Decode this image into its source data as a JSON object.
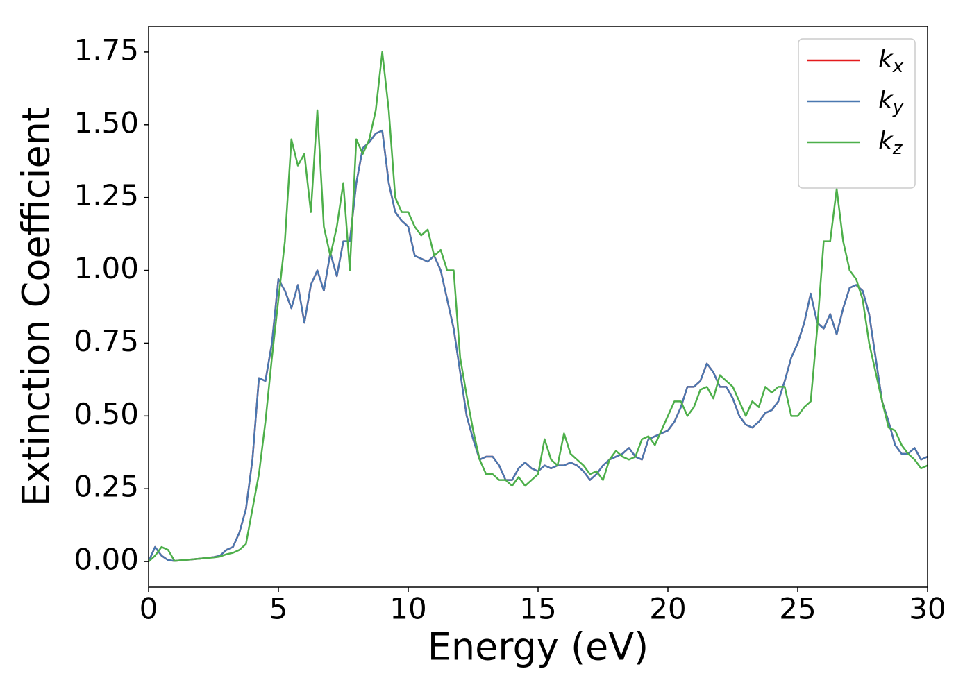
{
  "chart_data": {
    "type": "line",
    "xlabel": "Energy (eV)",
    "ylabel": "Extinction Coefficient",
    "x": [
      0,
      0.25,
      0.5,
      0.75,
      1,
      1.25,
      1.5,
      1.75,
      2,
      2.25,
      2.5,
      2.75,
      3,
      3.25,
      3.5,
      3.75,
      4,
      4.25,
      4.5,
      4.75,
      5,
      5.25,
      5.5,
      5.75,
      6,
      6.25,
      6.5,
      6.75,
      7,
      7.25,
      7.5,
      7.75,
      8,
      8.25,
      8.5,
      8.75,
      9,
      9.25,
      9.5,
      9.75,
      10,
      10.25,
      10.5,
      10.75,
      11,
      11.25,
      11.5,
      11.75,
      12,
      12.25,
      12.5,
      12.75,
      13,
      13.25,
      13.5,
      13.75,
      14,
      14.25,
      14.5,
      14.75,
      15,
      15.25,
      15.5,
      15.75,
      16,
      16.25,
      16.5,
      16.75,
      17,
      17.25,
      17.5,
      17.75,
      18,
      18.25,
      18.5,
      18.75,
      19,
      19.25,
      19.5,
      19.75,
      20,
      20.25,
      20.5,
      20.75,
      21,
      21.25,
      21.5,
      21.75,
      22,
      22.25,
      22.5,
      22.75,
      23,
      23.25,
      23.5,
      23.75,
      24,
      24.25,
      24.5,
      24.75,
      25,
      25.25,
      25.5,
      25.75,
      26,
      26.25,
      26.5,
      26.75,
      27,
      27.25,
      27.5,
      27.75,
      28,
      28.25,
      28.5,
      28.75,
      29,
      29.25,
      29.5,
      29.75,
      30
    ],
    "series": [
      {
        "name": "kx",
        "color": "#e41a1c",
        "values": [
          0,
          0.05,
          0.02,
          0.005,
          0.002,
          0.004,
          0.006,
          0.008,
          0.01,
          0.012,
          0.015,
          0.02,
          0.04,
          0.05,
          0.1,
          0.18,
          0.35,
          0.63,
          0.62,
          0.75,
          0.97,
          0.93,
          0.87,
          0.95,
          0.82,
          0.95,
          1.0,
          0.93,
          1.06,
          0.98,
          1.1,
          1.1,
          1.3,
          1.42,
          1.44,
          1.47,
          1.48,
          1.3,
          1.2,
          1.17,
          1.15,
          1.05,
          1.04,
          1.03,
          1.05,
          1.0,
          0.9,
          0.8,
          0.65,
          0.5,
          0.42,
          0.35,
          0.36,
          0.36,
          0.33,
          0.28,
          0.28,
          0.32,
          0.34,
          0.32,
          0.31,
          0.33,
          0.32,
          0.33,
          0.33,
          0.34,
          0.33,
          0.31,
          0.28,
          0.3,
          0.33,
          0.35,
          0.36,
          0.37,
          0.39,
          0.36,
          0.35,
          0.42,
          0.43,
          0.44,
          0.45,
          0.48,
          0.53,
          0.6,
          0.6,
          0.62,
          0.68,
          0.65,
          0.6,
          0.6,
          0.56,
          0.5,
          0.47,
          0.46,
          0.48,
          0.51,
          0.52,
          0.55,
          0.62,
          0.7,
          0.75,
          0.82,
          0.92,
          0.82,
          0.8,
          0.85,
          0.78,
          0.87,
          0.94,
          0.95,
          0.93,
          0.85,
          0.7,
          0.55,
          0.48,
          0.4,
          0.37,
          0.37,
          0.39,
          0.35,
          0.36
        ]
      },
      {
        "name": "ky",
        "color": "#4a78b0",
        "values": [
          0,
          0.05,
          0.02,
          0.005,
          0.002,
          0.004,
          0.006,
          0.008,
          0.01,
          0.012,
          0.015,
          0.02,
          0.04,
          0.05,
          0.1,
          0.18,
          0.35,
          0.63,
          0.62,
          0.75,
          0.97,
          0.93,
          0.87,
          0.95,
          0.82,
          0.95,
          1.0,
          0.93,
          1.06,
          0.98,
          1.1,
          1.1,
          1.3,
          1.42,
          1.44,
          1.47,
          1.48,
          1.3,
          1.2,
          1.17,
          1.15,
          1.05,
          1.04,
          1.03,
          1.05,
          1.0,
          0.9,
          0.8,
          0.65,
          0.5,
          0.42,
          0.35,
          0.36,
          0.36,
          0.33,
          0.28,
          0.28,
          0.32,
          0.34,
          0.32,
          0.31,
          0.33,
          0.32,
          0.33,
          0.33,
          0.34,
          0.33,
          0.31,
          0.28,
          0.3,
          0.33,
          0.35,
          0.36,
          0.37,
          0.39,
          0.36,
          0.35,
          0.42,
          0.43,
          0.44,
          0.45,
          0.48,
          0.53,
          0.6,
          0.6,
          0.62,
          0.68,
          0.65,
          0.6,
          0.6,
          0.56,
          0.5,
          0.47,
          0.46,
          0.48,
          0.51,
          0.52,
          0.55,
          0.62,
          0.7,
          0.75,
          0.82,
          0.92,
          0.82,
          0.8,
          0.85,
          0.78,
          0.87,
          0.94,
          0.95,
          0.93,
          0.85,
          0.7,
          0.55,
          0.48,
          0.4,
          0.37,
          0.37,
          0.39,
          0.35,
          0.36
        ]
      },
      {
        "name": "kz",
        "color": "#4daf4a",
        "values": [
          0,
          0.02,
          0.05,
          0.04,
          0.002,
          0.004,
          0.006,
          0.008,
          0.01,
          0.012,
          0.014,
          0.017,
          0.025,
          0.03,
          0.04,
          0.06,
          0.18,
          0.3,
          0.48,
          0.7,
          0.9,
          1.1,
          1.45,
          1.36,
          1.4,
          1.2,
          1.55,
          1.15,
          1.05,
          1.15,
          1.3,
          1.0,
          1.45,
          1.4,
          1.45,
          1.55,
          1.75,
          1.55,
          1.25,
          1.2,
          1.2,
          1.15,
          1.12,
          1.14,
          1.05,
          1.07,
          1.0,
          1.0,
          0.7,
          0.57,
          0.45,
          0.35,
          0.3,
          0.3,
          0.28,
          0.28,
          0.26,
          0.29,
          0.26,
          0.28,
          0.3,
          0.42,
          0.35,
          0.33,
          0.44,
          0.37,
          0.35,
          0.33,
          0.3,
          0.31,
          0.28,
          0.35,
          0.38,
          0.36,
          0.35,
          0.36,
          0.42,
          0.43,
          0.4,
          0.45,
          0.5,
          0.55,
          0.55,
          0.5,
          0.53,
          0.59,
          0.6,
          0.56,
          0.64,
          0.62,
          0.6,
          0.55,
          0.5,
          0.55,
          0.53,
          0.6,
          0.58,
          0.6,
          0.6,
          0.5,
          0.5,
          0.53,
          0.55,
          0.8,
          1.1,
          1.1,
          1.28,
          1.1,
          1.0,
          0.97,
          0.9,
          0.75,
          0.65,
          0.55,
          0.46,
          0.45,
          0.4,
          0.37,
          0.35,
          0.32,
          0.33
        ]
      }
    ],
    "xlim": [
      0,
      30
    ],
    "xticks": [
      0,
      5,
      10,
      15,
      20,
      25,
      30
    ],
    "ylim": [
      -0.088,
      1.838
    ],
    "yticks": [
      {
        "value": 0,
        "label": "0.00"
      },
      {
        "value": 0.25,
        "label": "0.25"
      },
      {
        "value": 0.5,
        "label": "0.50"
      },
      {
        "value": 0.75,
        "label": "0.75"
      },
      {
        "value": 1,
        "label": "1.00"
      },
      {
        "value": 1.25,
        "label": "1.25"
      },
      {
        "value": 1.5,
        "label": "1.50"
      },
      {
        "value": 1.75,
        "label": "1.75"
      }
    ],
    "legend": "upper right"
  }
}
